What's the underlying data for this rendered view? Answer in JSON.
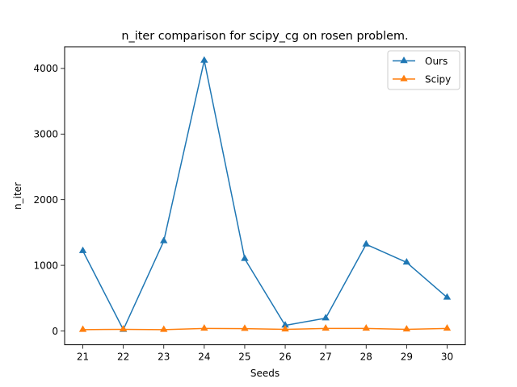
{
  "chart_data": {
    "type": "line",
    "title": "n_iter comparison for scipy_cg on rosen problem.",
    "xlabel": "Seeds",
    "ylabel": "n_iter",
    "x": [
      21,
      22,
      23,
      24,
      25,
      26,
      27,
      28,
      29,
      30
    ],
    "xlim": [
      20.55,
      30.45
    ],
    "ylim": [
      -210,
      4330
    ],
    "yticks": [
      0,
      1000,
      2000,
      3000,
      4000
    ],
    "grid": false,
    "legend_position": "top-right",
    "marker": "triangle-up",
    "series": [
      {
        "name": "Ours",
        "color": "#1f77b4",
        "values": [
          1220,
          20,
          1370,
          4120,
          1100,
          85,
          195,
          1320,
          1045,
          510
        ]
      },
      {
        "name": "Scipy",
        "color": "#ff7f0e",
        "values": [
          20,
          25,
          20,
          38,
          35,
          25,
          38,
          38,
          25,
          38
        ]
      }
    ]
  }
}
